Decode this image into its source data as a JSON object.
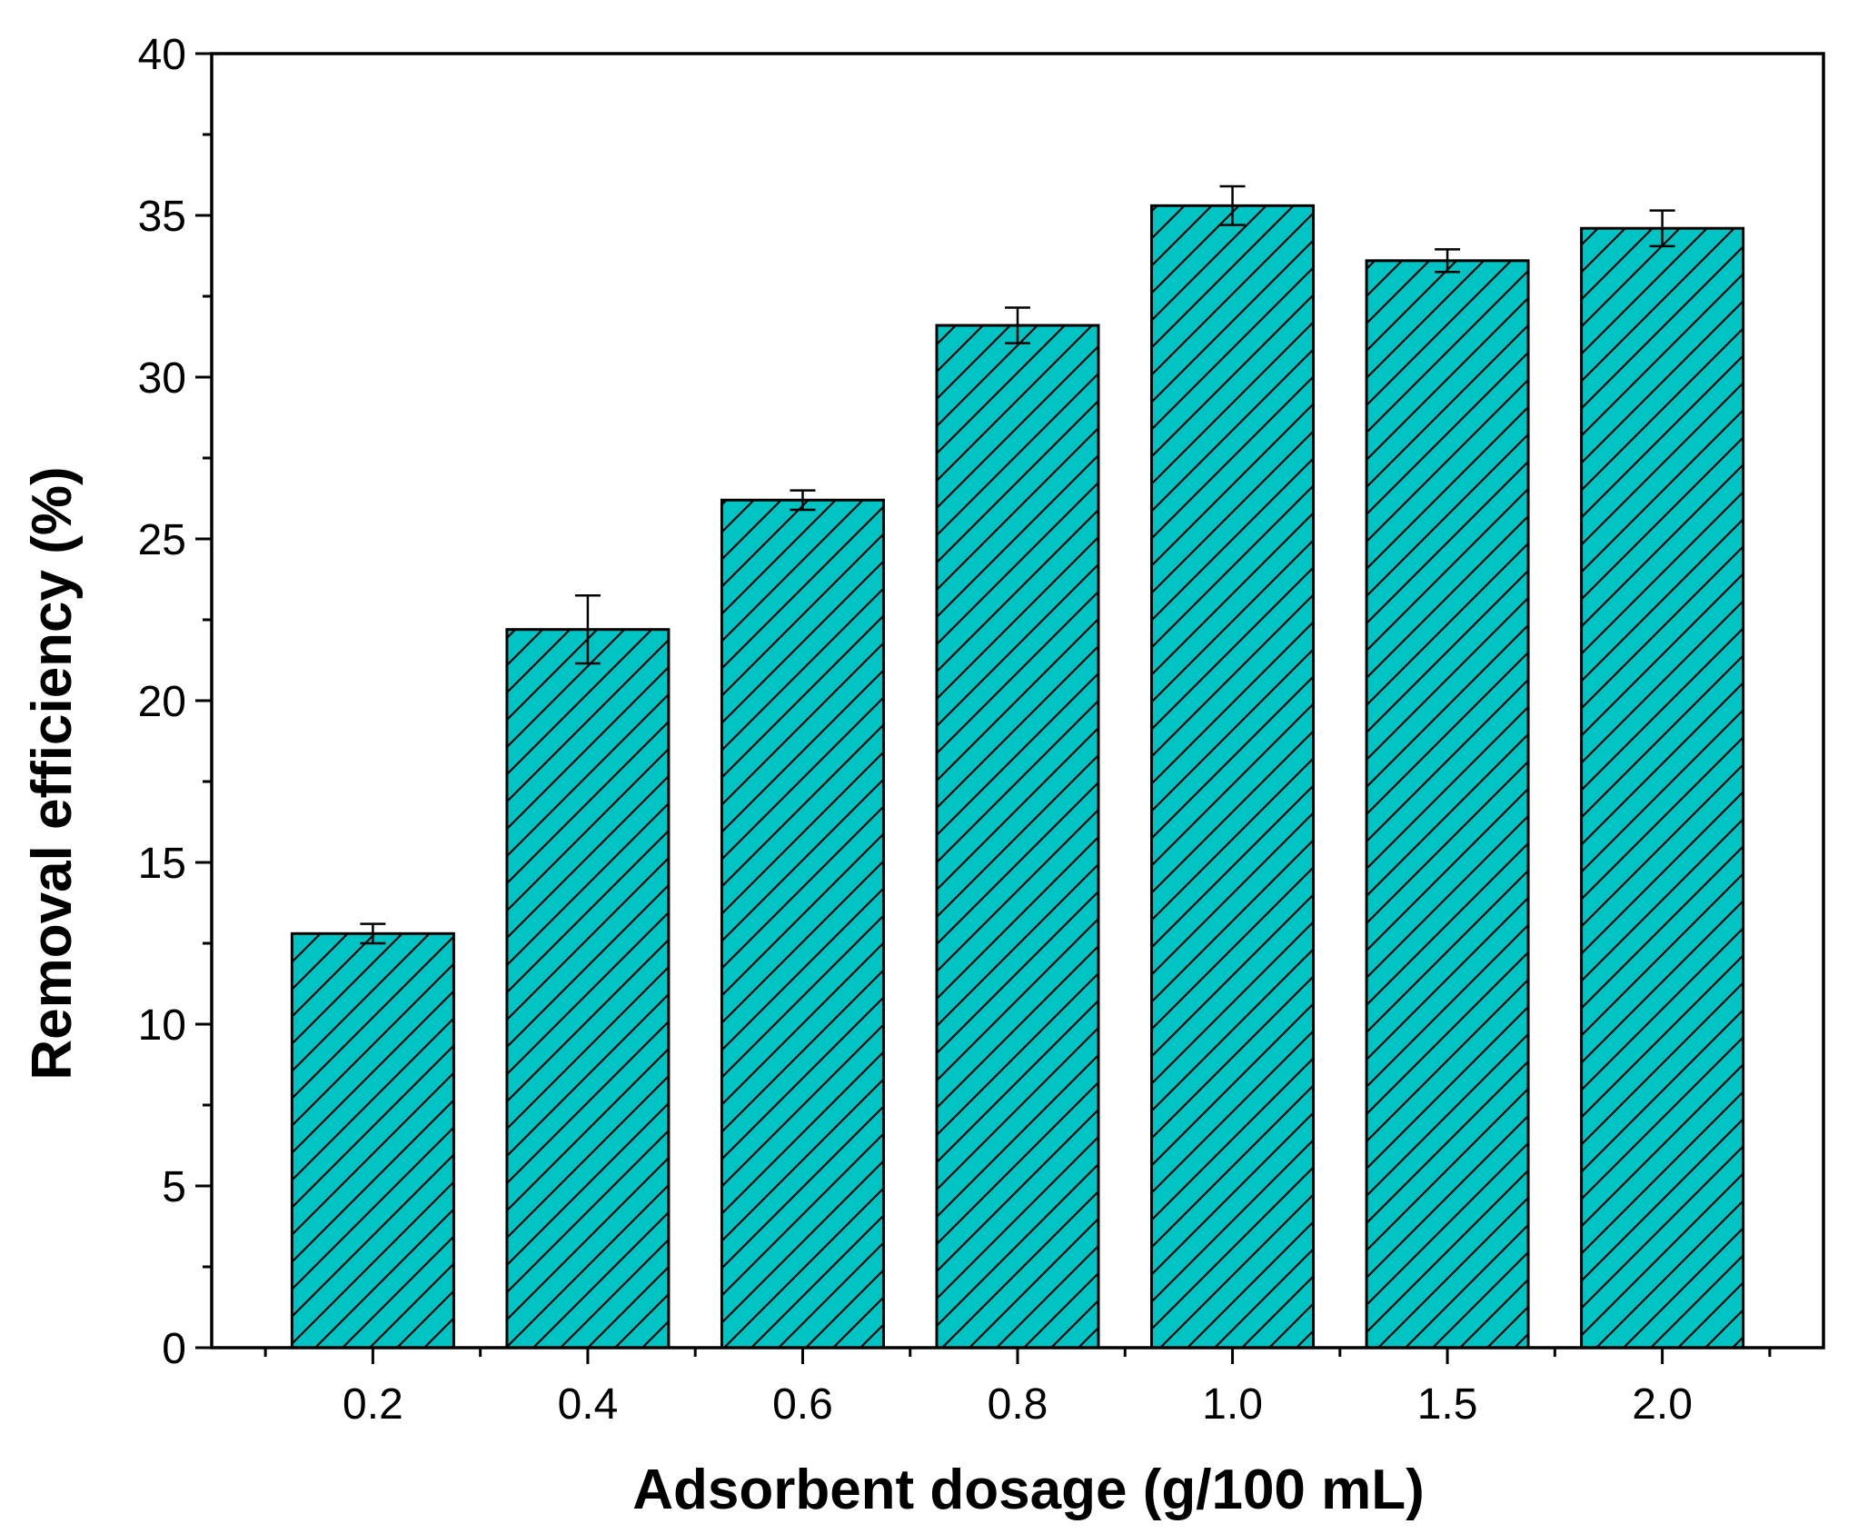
{
  "chart_data": {
    "type": "bar",
    "title": "",
    "xlabel": "Adsorbent dosage (g/100 mL)",
    "ylabel": "Removal efficiency (%)",
    "categories": [
      "0.2",
      "0.4",
      "0.6",
      "0.8",
      "1.0",
      "1.5",
      "2.0"
    ],
    "values": [
      12.8,
      22.2,
      26.2,
      31.6,
      35.3,
      33.6,
      34.6
    ],
    "error": [
      0.3,
      1.05,
      0.3,
      0.55,
      0.6,
      0.35,
      0.55
    ],
    "ylim": [
      0,
      40
    ],
    "yticks": [
      0,
      5,
      10,
      15,
      20,
      25,
      30,
      35,
      40
    ],
    "grid": false,
    "bar_color": "#00c4c4",
    "hatch": "diagonal"
  }
}
